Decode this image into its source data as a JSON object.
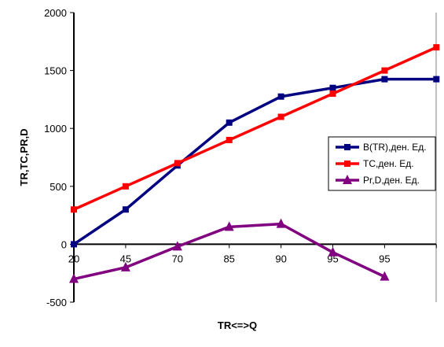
{
  "chart_data": {
    "type": "line",
    "xlabel": "TR<=>Q",
    "ylabel": "TR,TC,PR,D",
    "categories": [
      "20",
      "45",
      "70",
      "85",
      "90",
      "95",
      "95",
      ""
    ],
    "ylim": [
      -500,
      2000
    ],
    "yticks": [
      "-500",
      "0",
      "500",
      "1000",
      "1500",
      "2000"
    ],
    "grid": false,
    "legend_position": "right",
    "series": [
      {
        "name": "B(TR),ден. Ед.",
        "color": "#000080",
        "marker": "square",
        "values": [
          0,
          300,
          680,
          1050,
          1275,
          1350,
          1425,
          1425
        ]
      },
      {
        "name": "TC,ден. Ед.",
        "color": "#ff0000",
        "marker": "square",
        "values": [
          300,
          500,
          700,
          900,
          1100,
          1300,
          1500,
          1700
        ]
      },
      {
        "name": "Pr,D,ден. Ед.",
        "color": "#800080",
        "marker": "triangle",
        "values": [
          -300,
          -200,
          -20,
          150,
          175,
          -70,
          -280,
          null
        ]
      }
    ]
  }
}
